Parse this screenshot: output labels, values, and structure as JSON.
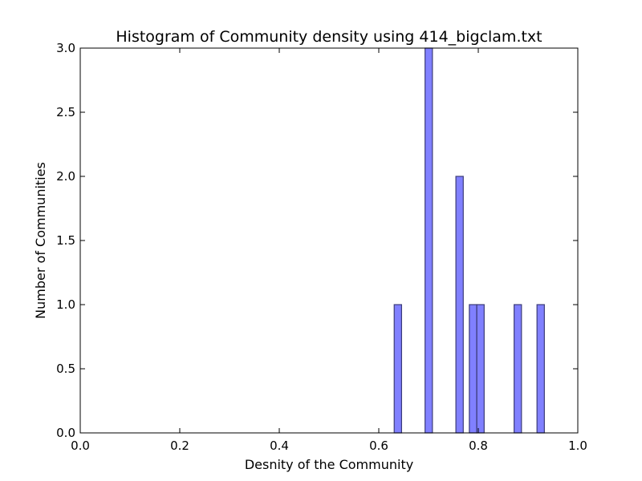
{
  "chart_data": {
    "type": "bar",
    "title": "Histogram of Community density using 414_bigclam.txt",
    "xlabel": "Desnity of the Community",
    "ylabel": "Number of Communities",
    "xlim": [
      0.0,
      1.0
    ],
    "ylim": [
      0.0,
      3.0
    ],
    "xticks": [
      "0.0",
      "0.2",
      "0.4",
      "0.6",
      "0.8",
      "1.0"
    ],
    "yticks": [
      "0.0",
      "0.5",
      "1.0",
      "1.5",
      "2.0",
      "2.5",
      "3.0"
    ],
    "grid": false,
    "bin_width": 0.0148,
    "bins": [
      {
        "start": 0.631,
        "count": 1
      },
      {
        "start": 0.693,
        "count": 3
      },
      {
        "start": 0.755,
        "count": 2
      },
      {
        "start": 0.782,
        "count": 1
      },
      {
        "start": 0.797,
        "count": 1
      },
      {
        "start": 0.872,
        "count": 1
      },
      {
        "start": 0.918,
        "count": 1
      }
    ],
    "colors": {
      "bar_fill": "#8080ff",
      "bar_edge": "#3c3c78"
    }
  }
}
